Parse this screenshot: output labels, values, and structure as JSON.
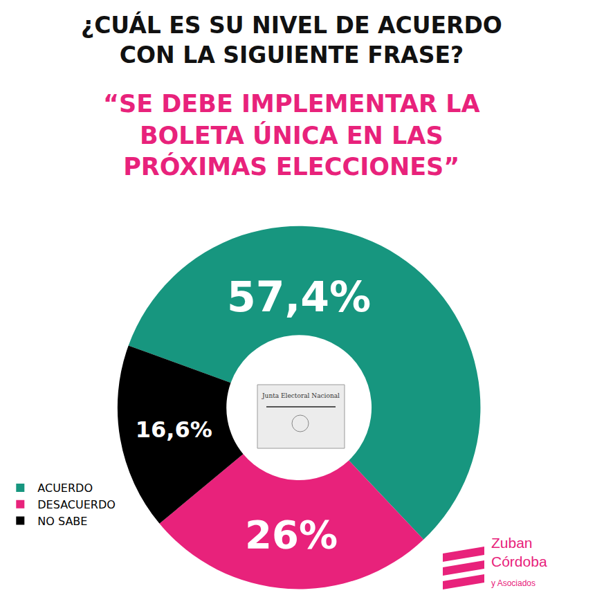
{
  "chart_data": {
    "type": "pie",
    "title": "¿CUÁL ES SU NIVEL DE ACUERDO CON LA SIGUIENTE FRASE?",
    "subtitle": "“SE DEBE IMPLEMENTAR LA BOLETA ÚNICA EN LAS PRÓXIMAS ELECCIONES”",
    "categories": [
      "ACUERDO",
      "DESACUERDO",
      "NO SABE"
    ],
    "values": [
      57.4,
      26,
      16.6
    ],
    "value_labels": [
      "57,4%",
      "26%",
      "16,6%"
    ],
    "colors": [
      "#17967f",
      "#e8227b",
      "#000000"
    ],
    "data_labels": true,
    "legend": "bottom left",
    "annotations": [
      "Junta Electoral Nacional",
      "Zuban Córdoba y Asociados"
    ]
  }
}
